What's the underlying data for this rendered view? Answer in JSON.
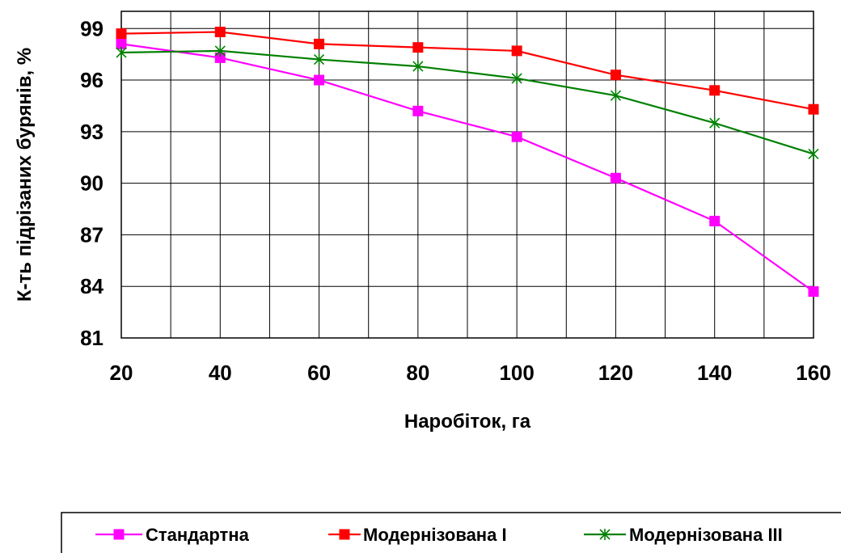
{
  "chart_data": {
    "type": "line",
    "title": "",
    "xlabel": "Наробіток, га",
    "ylabel": "К-ть підрізаних бурянів, %",
    "x": [
      20,
      40,
      60,
      80,
      100,
      120,
      140,
      160
    ],
    "x_tick_labels": [
      "20",
      "40",
      "60",
      "80",
      "100",
      "120",
      "140",
      "160"
    ],
    "y_tick_labels": [
      "81",
      "84",
      "87",
      "90",
      "93",
      "96",
      "99"
    ],
    "y_ticks": [
      81,
      84,
      87,
      90,
      93,
      96,
      99
    ],
    "xlim": [
      20,
      160
    ],
    "ylim": [
      81,
      100
    ],
    "grid": true,
    "legend_position": "bottom",
    "series": [
      {
        "name": "Стандартна",
        "color": "#ff00ff",
        "marker": "square",
        "values": [
          98.1,
          97.3,
          96.0,
          94.2,
          92.7,
          90.3,
          87.8,
          83.7
        ]
      },
      {
        "name": "Модернізована І",
        "color": "#ff0000",
        "marker": "square",
        "values": [
          98.7,
          98.8,
          98.1,
          97.9,
          97.7,
          96.3,
          95.4,
          94.3
        ]
      },
      {
        "name": "Модернізована ІІІ",
        "color": "#008000",
        "marker": "star",
        "values": [
          97.6,
          97.7,
          97.2,
          96.8,
          96.1,
          95.1,
          93.5,
          91.7
        ]
      }
    ]
  }
}
